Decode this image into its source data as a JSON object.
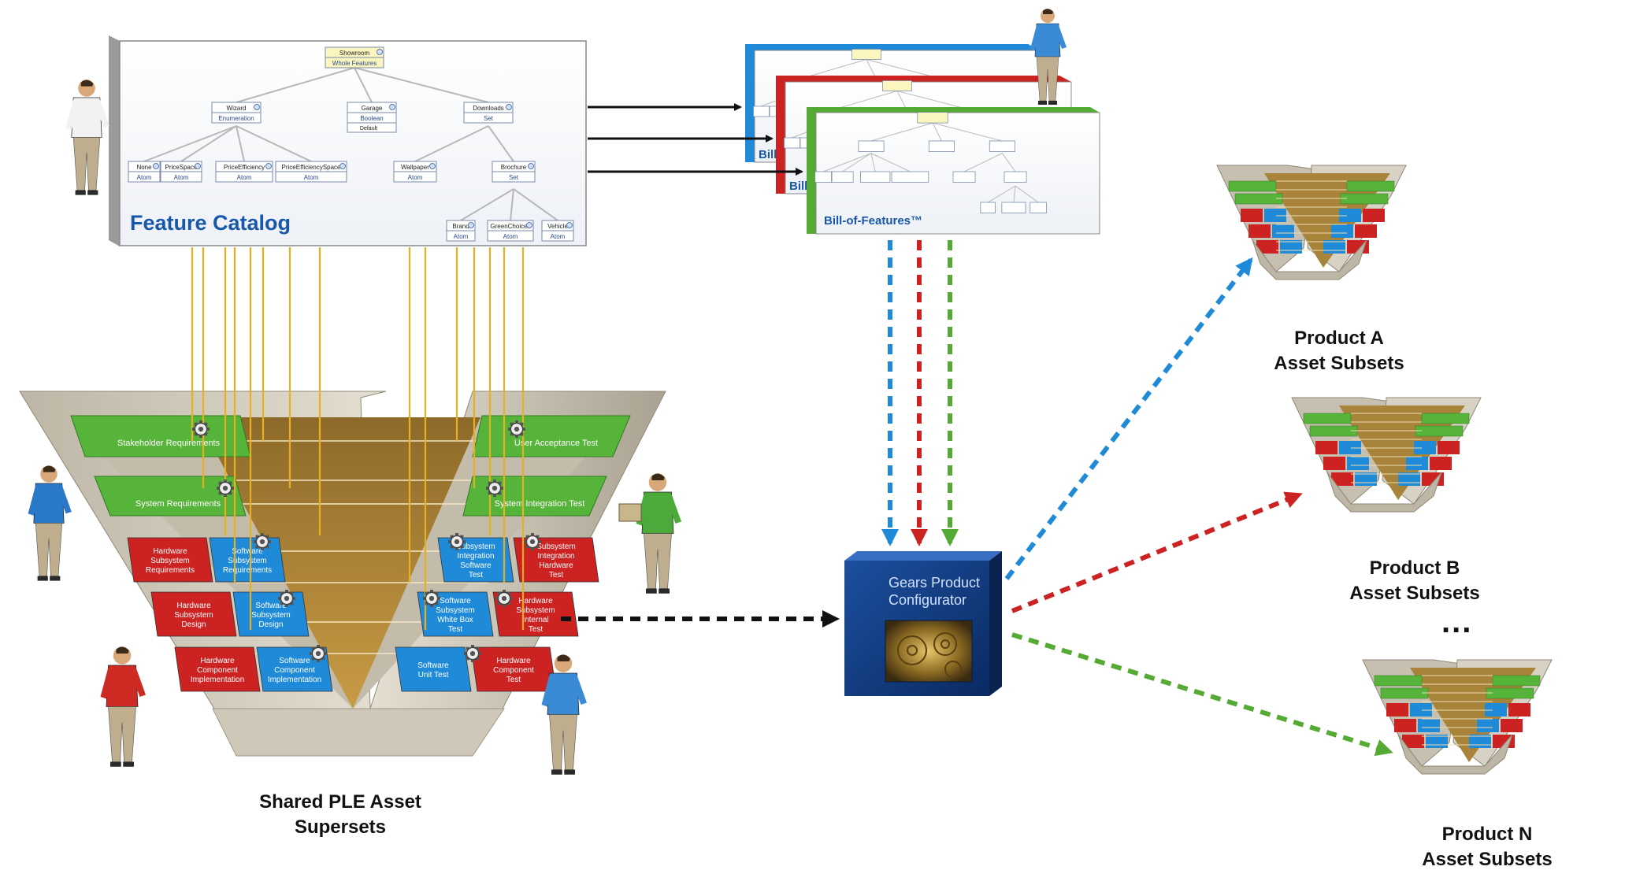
{
  "feature_catalog": {
    "title": "Feature Catalog",
    "root": {
      "name": "Showroom",
      "type": "Whole Features"
    },
    "level1": [
      {
        "name": "Wizard",
        "type": "Enumeration"
      },
      {
        "name": "Garage",
        "type": "Boolean",
        "default": "Default"
      },
      {
        "name": "Downloads",
        "type": "Set"
      }
    ],
    "wizard_children": [
      {
        "name": "None",
        "type": "Atom"
      },
      {
        "name": "PriceSpace",
        "type": "Atom"
      },
      {
        "name": "PriceEfficiency",
        "type": "Atom"
      },
      {
        "name": "PriceEfficiencySpace",
        "type": "Atom"
      }
    ],
    "downloads_children": [
      {
        "name": "Wallpaper",
        "type": "Atom"
      },
      {
        "name": "Brochure",
        "type": "Set"
      }
    ],
    "brochure_children": [
      {
        "name": "Brand",
        "type": "Atom"
      },
      {
        "name": "GreenChoices",
        "type": "Atom"
      },
      {
        "name": "Vehicle",
        "type": "Atom"
      }
    ]
  },
  "bill_of_features": {
    "title": "Bill-of-Features™",
    "partial_label": "Bill-",
    "stack_colors": [
      "#2a8ad4",
      "#d22a2a",
      "#4caa3a"
    ]
  },
  "vmodel": {
    "left_rows": [
      "Stakeholder Requirements",
      "System Requirements"
    ],
    "right_rows": [
      "User Acceptance Test",
      "System Integration Test"
    ],
    "left_blocks": [
      {
        "hw": "Hardware Subsystem Requirements",
        "sw": "Software Subsystem Requirements"
      },
      {
        "hw": "Hardware Subsystem Design",
        "sw": "Software Subsystem Design"
      },
      {
        "hw": "Hardware Component Implementation",
        "sw": "Software Component Implementation"
      }
    ],
    "right_blocks": [
      {
        "sw": "Subsystem Integration Software Test",
        "hw": "Subsystem Integration Hardware Test"
      },
      {
        "sw": "Software Subsystem White Box Test",
        "hw": "Hardware Subsystem Internal Test"
      },
      {
        "sw": "Software Unit Test",
        "hw": "Hardware Component Test"
      }
    ]
  },
  "configurator": {
    "title_line1": "Gears Product",
    "title_line2": "Configurator"
  },
  "captions": {
    "shared_line1": "Shared PLE Asset",
    "shared_line2": "Supersets",
    "product_a_line1": "Product A",
    "product_a_line2": "Asset Subsets",
    "product_b_line1": "Product B",
    "product_b_line2": "Asset Subsets",
    "ellipsis": "...",
    "product_n_line1": "Product N",
    "product_n_line2": "Asset Subsets"
  },
  "colors": {
    "blue": "#1e8ad8",
    "red": "#cc2222",
    "green": "#55aa33",
    "gold": "#e8a820",
    "trace_line": "#e8b020",
    "black_arrow": "#111111"
  }
}
